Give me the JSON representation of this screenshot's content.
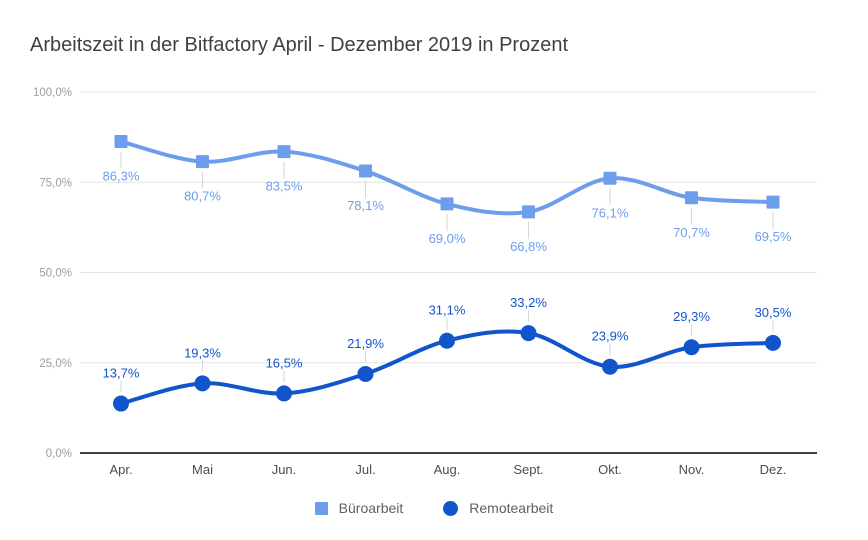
{
  "title": "Arbeitszeit in der Bitfactory April - Dezember 2019 in Prozent",
  "chart_data": {
    "type": "line",
    "smooth": true,
    "grid": true,
    "legend_position": "bottom",
    "title": "Arbeitszeit in der Bitfactory April - Dezember 2019 in Prozent",
    "xlabel": "",
    "ylabel": "",
    "ylim": [
      0,
      100
    ],
    "categories": [
      "Apr.",
      "Mai",
      "Jun.",
      "Jul.",
      "Aug.",
      "Sept.",
      "Okt.",
      "Nov.",
      "Dez."
    ],
    "y_ticks": [
      {
        "value": 100,
        "label": "100,0%"
      },
      {
        "value": 75,
        "label": "75,0%"
      },
      {
        "value": 50,
        "label": "50,0%"
      },
      {
        "value": 25,
        "label": "25,0%"
      },
      {
        "value": 0,
        "label": "0,0%"
      }
    ],
    "series": [
      {
        "name": "Büroarbeit",
        "color": "#6d9eeb",
        "marker": "square",
        "label_side": "below",
        "values": [
          86.3,
          80.7,
          83.5,
          78.1,
          69.0,
          66.8,
          76.1,
          70.7,
          69.5
        ],
        "point_labels": [
          "86,3%",
          "80,7%",
          "83,5%",
          "78,1%",
          "69,0%",
          "66,8%",
          "76,1%",
          "70,7%",
          "69,5%"
        ]
      },
      {
        "name": "Remotearbeit",
        "color": "#1155cc",
        "marker": "circle",
        "label_side": "above",
        "values": [
          13.7,
          19.3,
          16.5,
          21.9,
          31.1,
          33.2,
          23.9,
          29.3,
          30.5
        ],
        "point_labels": [
          "13,7%",
          "19,3%",
          "16,5%",
          "21,9%",
          "31,1%",
          "33,2%",
          "23,9%",
          "29,3%",
          "30,5%"
        ]
      }
    ]
  },
  "colors": {
    "background": "#ffffff",
    "title_text": "#404040",
    "gridline": "#e3e3e3",
    "axis_line": "#424242",
    "y_tick_text": "#9e9e9e",
    "x_tick_text": "#4d4d4d",
    "legend_text": "#616161",
    "leader_line": "#d6d6d6",
    "series1": "#6d9eeb",
    "series2": "#1155cc"
  }
}
